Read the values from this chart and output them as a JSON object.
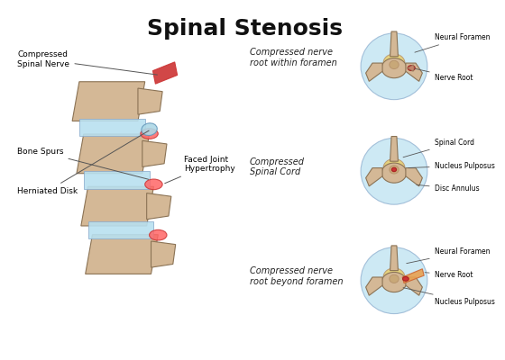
{
  "title": "Spinal Stenosis",
  "title_fontsize": 18,
  "title_fontweight": "bold",
  "background_color": "#ffffff",
  "labels": {
    "herniated_disk": "Herniated Disk",
    "bone_spurs": "Bone Spurs",
    "faced_joint": "Faced Joint\nHypertrophy",
    "compressed_nerve": "Compressed\nSpinal Nerve",
    "compressed_foramen": "Compressed nerve\nroot within foramen",
    "compressed_cord": "Compressed\nSpinal Cord",
    "compressed_beyond": "Compressed nerve\nroot beyond foramen",
    "neural_foramen1": "Neural Foramen",
    "nerve_root1": "Nerve Root",
    "spinal_cord": "Spinal Cord",
    "nucleus_pulposus1": "Nucleus Pulposus",
    "disc_annulus": "Disc Annulus",
    "neural_foramen2": "Neural Foramen",
    "nerve_root2": "Nerve Root",
    "nucleus_pulposus2": "Nucleus Pulposus"
  },
  "colors": {
    "bone": "#D4B896",
    "bone_dark": "#C4A882",
    "bone_shadow": "#B8956E",
    "disc": "#ADD8E6",
    "disc_light": "#B8E0F0",
    "red": "#CC3333",
    "red_light": "#FF6666",
    "nucleus": "#E8D070",
    "nucleus_light": "#F0DC90",
    "outline": "#8B7355",
    "spinal_cord_color": "#D4B896",
    "compressed_red": "#CC3333",
    "nerve_orange": "#CC6633",
    "nerve_yellow": "#E8A050"
  }
}
